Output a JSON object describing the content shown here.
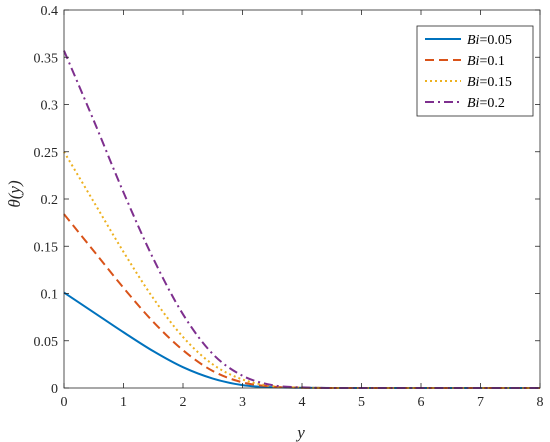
{
  "chart_data": {
    "type": "line",
    "xlabel": "y",
    "ylabel": "θ(y)",
    "xlim": [
      0,
      8
    ],
    "ylim": [
      0,
      0.4
    ],
    "xticks": [
      "0",
      "1",
      "2",
      "3",
      "4",
      "5",
      "6",
      "7",
      "8"
    ],
    "yticks": [
      "0",
      "0.05",
      "0.1",
      "0.15",
      "0.2",
      "0.25",
      "0.3",
      "0.35",
      "0.4"
    ],
    "grid": false,
    "legend_position": "top-right",
    "x": [
      0,
      0.5,
      1,
      1.5,
      2,
      2.5,
      3,
      3.5,
      4,
      4.5,
      5,
      6,
      7,
      8
    ],
    "series": [
      {
        "name": "Bi=0.05",
        "name_prefix": "Bi",
        "name_value": "=0.05",
        "color": "#0072BD",
        "dash": "solid",
        "values": [
          0.101,
          0.08,
          0.059,
          0.039,
          0.022,
          0.01,
          0.003,
          0.0008,
          0.0002,
          0,
          0,
          0,
          0,
          0
        ]
      },
      {
        "name": "Bi=0.1",
        "name_prefix": "Bi",
        "name_value": "=0.1",
        "color": "#D95319",
        "dash": "dashed",
        "values": [
          0.184,
          0.145,
          0.106,
          0.07,
          0.04,
          0.018,
          0.006,
          0.0015,
          0.0003,
          0,
          0,
          0,
          0,
          0
        ]
      },
      {
        "name": "Bi=0.15",
        "name_prefix": "Bi",
        "name_value": "=0.15",
        "color": "#EDB120",
        "dash": "dotted",
        "values": [
          0.25,
          0.197,
          0.144,
          0.095,
          0.054,
          0.025,
          0.009,
          0.002,
          0.0004,
          0,
          0,
          0,
          0,
          0
        ]
      },
      {
        "name": "Bi=0.2",
        "name_prefix": "Bi",
        "name_value": "=0.2",
        "color": "#7E2F8E",
        "dash": "dashdot",
        "values": [
          0.357,
          0.283,
          0.207,
          0.137,
          0.078,
          0.036,
          0.013,
          0.003,
          0.0006,
          0,
          0,
          0,
          0,
          0
        ]
      }
    ]
  }
}
